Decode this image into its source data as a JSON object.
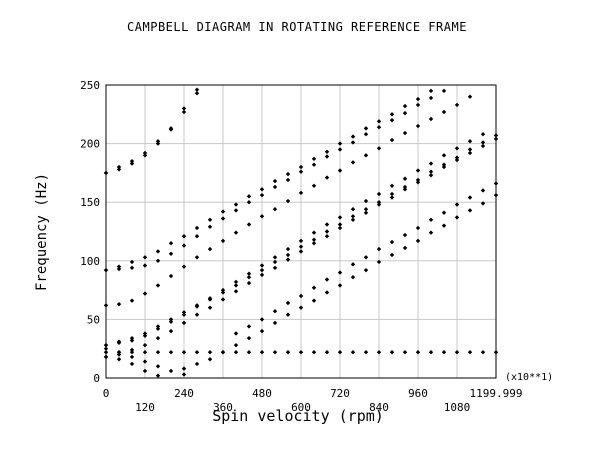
{
  "chart_data": {
    "type": "scatter",
    "title": "CAMPBELL DIAGRAM IN ROTATING REFERENCE FRAME",
    "xlabel": "Spin velocity (rpm)",
    "ylabel": "Frequency (Hz)",
    "x_multiplier_label": "(x10**1)",
    "xlim": [
      0,
      1199.999
    ],
    "ylim": [
      0,
      250
    ],
    "x_ticks": [
      0,
      120,
      240,
      360,
      480,
      600,
      720,
      840,
      960,
      1080,
      1199.999
    ],
    "x_tick_labels": [
      "0",
      "120",
      "240",
      "360",
      "480",
      "600",
      "720",
      "840",
      "960",
      "1080",
      "1199.999"
    ],
    "y_ticks": [
      0,
      50,
      100,
      150,
      200,
      250
    ],
    "y_tick_labels": [
      "0",
      "50",
      "100",
      "150",
      "200",
      "250"
    ],
    "grid": true,
    "marker_color": "#000000",
    "x": [
      0,
      40,
      80,
      120,
      160,
      200,
      240,
      280,
      320,
      360,
      400,
      440,
      480,
      520,
      560,
      600,
      640,
      680,
      720,
      760,
      800,
      840,
      880,
      920,
      960,
      1000,
      1040,
      1080,
      1120,
      1160,
      1200
    ],
    "series": [
      {
        "values": [
          175,
          178,
          183,
          190,
          200,
          213,
          230,
          246,
          null,
          null,
          null,
          null,
          null,
          null,
          null,
          null,
          null,
          null,
          null,
          null,
          null,
          null,
          null,
          null,
          null,
          null,
          null,
          null,
          null,
          null,
          null
        ]
      },
      {
        "values": [
          175,
          180,
          185,
          192,
          202,
          212,
          227,
          243,
          null,
          null,
          null,
          null,
          null,
          null,
          null,
          null,
          null,
          null,
          null,
          null,
          null,
          null,
          null,
          null,
          null,
          null,
          null,
          null,
          null,
          null,
          null
        ]
      },
      {
        "values": [
          92,
          95,
          99,
          103,
          108,
          115,
          121,
          128,
          135,
          142,
          148,
          155,
          161,
          168,
          174,
          180,
          187,
          193,
          200,
          206,
          213,
          219,
          225,
          232,
          238,
          245,
          251,
          null,
          null,
          null,
          null
        ]
      },
      {
        "values": [
          92,
          93,
          94,
          96,
          100,
          106,
          113,
          121,
          129,
          136,
          143,
          150,
          156,
          163,
          169,
          176,
          182,
          189,
          195,
          201,
          208,
          214,
          220,
          226,
          233,
          239,
          245,
          null,
          null,
          null,
          null
        ]
      },
      {
        "values": [
          62,
          63,
          66,
          72,
          79,
          87,
          95,
          103,
          110,
          117,
          124,
          131,
          138,
          144,
          151,
          158,
          164,
          171,
          177,
          184,
          190,
          196,
          203,
          209,
          215,
          221,
          227,
          233,
          240,
          null,
          null
        ]
      },
      {
        "values": [
          28,
          31,
          34,
          38,
          44,
          50,
          56,
          62,
          68,
          75,
          82,
          89,
          96,
          103,
          110,
          117,
          124,
          131,
          137,
          144,
          151,
          157,
          164,
          170,
          177,
          183,
          190,
          196,
          202,
          208,
          null
        ]
      },
      {
        "values": [
          28,
          30,
          32,
          36,
          42,
          48,
          54,
          61,
          67,
          73,
          79,
          86,
          92,
          99,
          105,
          112,
          118,
          125,
          131,
          138,
          144,
          150,
          157,
          163,
          169,
          176,
          182,
          188,
          195,
          201,
          207
        ]
      },
      {
        "values": [
          18,
          20,
          24,
          28,
          34,
          40,
          47,
          54,
          60,
          67,
          74,
          81,
          88,
          94,
          101,
          108,
          115,
          121,
          128,
          135,
          141,
          148,
          154,
          161,
          167,
          173,
          180,
          186,
          192,
          198,
          204
        ]
      },
      {
        "values": [
          null,
          null,
          null,
          null,
          null,
          null,
          8,
          12,
          16,
          22,
          28,
          34,
          40,
          47,
          54,
          60,
          66,
          73,
          79,
          86,
          92,
          99,
          105,
          111,
          117,
          124,
          130,
          137,
          143,
          149,
          156
        ]
      },
      {
        "values": [
          null,
          null,
          null,
          null,
          null,
          null,
          null,
          null,
          null,
          null,
          38,
          44,
          50,
          57,
          64,
          70,
          77,
          84,
          90,
          97,
          103,
          110,
          116,
          122,
          128,
          135,
          141,
          148,
          154,
          160,
          166
        ]
      },
      {
        "values": [
          22,
          22,
          22,
          22,
          22,
          22,
          22,
          22,
          22,
          22,
          22,
          22,
          22,
          22,
          22,
          22,
          22,
          22,
          22,
          22,
          22,
          22,
          22,
          22,
          22,
          22,
          22,
          22,
          22,
          22,
          22
        ]
      },
      {
        "values": [
          18,
          16,
          12,
          6,
          2,
          null,
          null,
          null,
          null,
          null,
          null,
          null,
          null,
          null,
          null,
          null,
          null,
          null,
          null,
          null,
          null,
          null,
          null,
          null,
          null,
          null,
          null,
          null,
          null,
          null,
          null
        ]
      },
      {
        "values": [
          25,
          22,
          18,
          14,
          10,
          6,
          3,
          null,
          null,
          null,
          null,
          null,
          null,
          null,
          null,
          null,
          null,
          null,
          null,
          null,
          null,
          null,
          null,
          null,
          null,
          null,
          null,
          null,
          null,
          null,
          null
        ]
      }
    ]
  }
}
